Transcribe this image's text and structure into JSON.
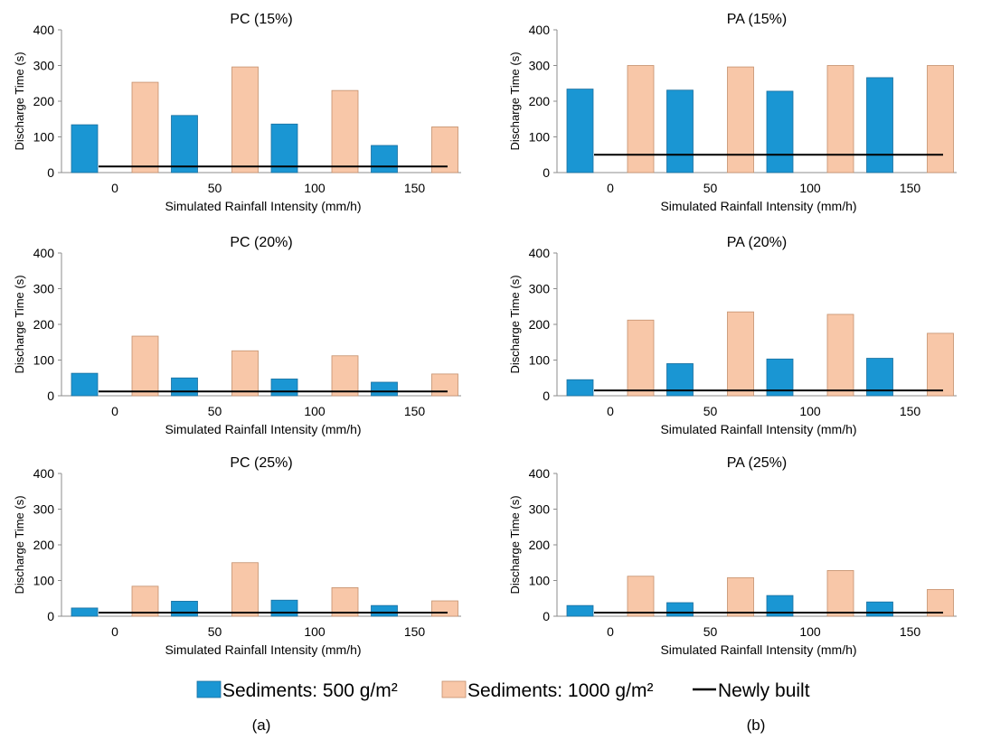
{
  "colors": {
    "sediments_500": "#1a96d3",
    "sediments_1000": "#f8c7a8",
    "bar_border_500": "#1a6f9e",
    "bar_border_1000": "#c48f6c",
    "newly_built_line": "#000000"
  },
  "legend": {
    "items": [
      {
        "label": "Sediments: 500 g/m²",
        "key": "sediments_500",
        "kind": "bar"
      },
      {
        "label": "Sediments: 1000 g/m²",
        "key": "sediments_1000",
        "kind": "bar"
      },
      {
        "label": "Newly built",
        "key": "newly_built_line",
        "kind": "line"
      }
    ]
  },
  "panel_labels": {
    "a": "(a)",
    "b": "(b)"
  },
  "chart_data": [
    {
      "type": "bar",
      "title": "PC (15%)",
      "xlabel": "Simulated Rainfall Intensity (mm/h)",
      "ylabel": "Discharge Time (s)",
      "ylim": [
        0,
        400
      ],
      "yticks": [
        0,
        100,
        200,
        300,
        400
      ],
      "categories": [
        "0",
        "50",
        "100",
        "150"
      ],
      "series": [
        {
          "key": "sediments_500",
          "values": [
            134,
            160,
            136,
            76
          ]
        },
        {
          "key": "sediments_1000",
          "values": [
            253,
            296,
            230,
            128
          ]
        }
      ],
      "reference_line": {
        "key": "newly_built_line",
        "value": 17
      }
    },
    {
      "type": "bar",
      "title": "PA (15%)",
      "xlabel": "Simulated Rainfall Intensity (mm/h)",
      "ylabel": "Discharge Time (s)",
      "ylim": [
        0,
        400
      ],
      "yticks": [
        0,
        100,
        200,
        300,
        400
      ],
      "categories": [
        "0",
        "50",
        "100",
        "150"
      ],
      "series": [
        {
          "key": "sediments_500",
          "values": [
            234,
            231,
            228,
            266
          ]
        },
        {
          "key": "sediments_1000",
          "values": [
            300,
            296,
            300,
            300
          ]
        }
      ],
      "reference_line": {
        "key": "newly_built_line",
        "value": 50
      }
    },
    {
      "type": "bar",
      "title": "PC (20%)",
      "xlabel": "Simulated Rainfall Intensity (mm/h)",
      "ylabel": "Discharge Time (s)",
      "ylim": [
        0,
        400
      ],
      "yticks": [
        0,
        100,
        200,
        300,
        400
      ],
      "categories": [
        "0",
        "50",
        "100",
        "150"
      ],
      "series": [
        {
          "key": "sediments_500",
          "values": [
            63,
            50,
            47,
            38
          ]
        },
        {
          "key": "sediments_1000",
          "values": [
            167,
            126,
            112,
            61
          ]
        }
      ],
      "reference_line": {
        "key": "newly_built_line",
        "value": 12
      }
    },
    {
      "type": "bar",
      "title": "PA (20%)",
      "xlabel": "Simulated Rainfall Intensity (mm/h)",
      "ylabel": "Discharge Time (s)",
      "ylim": [
        0,
        400
      ],
      "yticks": [
        0,
        100,
        200,
        300,
        400
      ],
      "categories": [
        "0",
        "50",
        "100",
        "150"
      ],
      "series": [
        {
          "key": "sediments_500",
          "values": [
            45,
            90,
            103,
            105
          ]
        },
        {
          "key": "sediments_1000",
          "values": [
            212,
            235,
            228,
            175
          ]
        }
      ],
      "reference_line": {
        "key": "newly_built_line",
        "value": 15
      }
    },
    {
      "type": "bar",
      "title": "PC (25%)",
      "xlabel": "Simulated Rainfall Intensity (mm/h)",
      "ylabel": "Discharge Time (s)",
      "ylim": [
        0,
        400
      ],
      "yticks": [
        0,
        100,
        200,
        300,
        400
      ],
      "categories": [
        "0",
        "50",
        "100",
        "150"
      ],
      "series": [
        {
          "key": "sediments_500",
          "values": [
            23,
            42,
            45,
            30
          ]
        },
        {
          "key": "sediments_1000",
          "values": [
            84,
            150,
            80,
            43
          ]
        }
      ],
      "reference_line": {
        "key": "newly_built_line",
        "value": 10
      }
    },
    {
      "type": "bar",
      "title": "PA (25%)",
      "xlabel": "Simulated Rainfall Intensity (mm/h)",
      "ylabel": "Discharge Time (s)",
      "ylim": [
        0,
        400
      ],
      "yticks": [
        0,
        100,
        200,
        300,
        400
      ],
      "categories": [
        "0",
        "50",
        "100",
        "150"
      ],
      "series": [
        {
          "key": "sediments_500",
          "values": [
            30,
            38,
            58,
            40
          ]
        },
        {
          "key": "sediments_1000",
          "values": [
            112,
            108,
            128,
            75
          ]
        }
      ],
      "reference_line": {
        "key": "newly_built_line",
        "value": 10
      }
    }
  ]
}
